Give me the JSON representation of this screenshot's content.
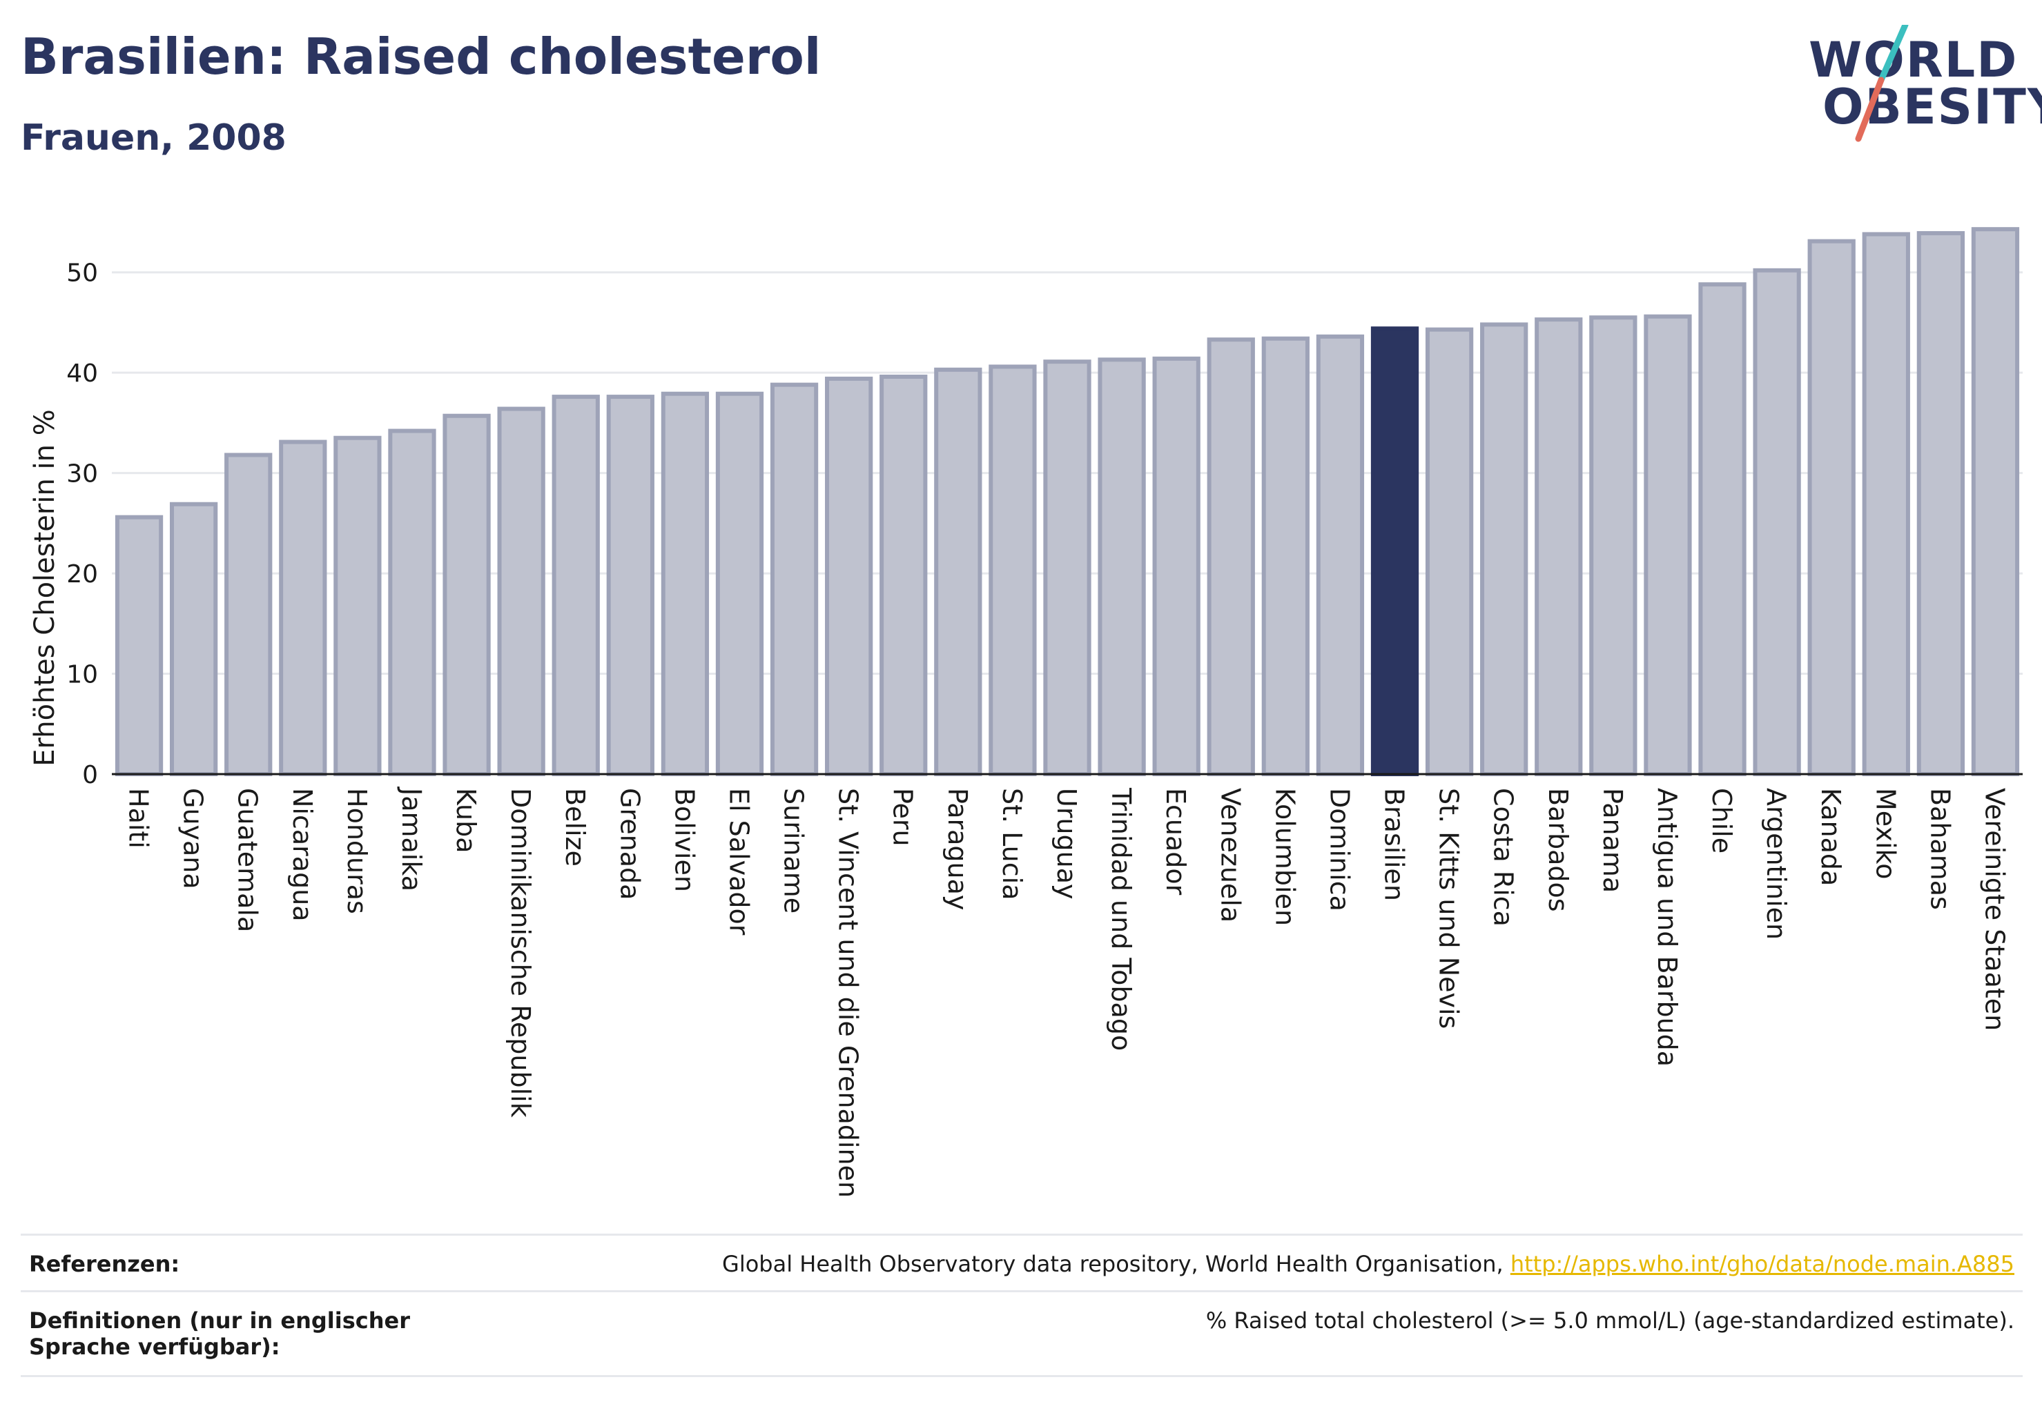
{
  "title": "Brasilien: Raised cholesterol",
  "subtitle": "Frauen, 2008",
  "logo": {
    "line1": "WORLD",
    "line2": "OBESITY"
  },
  "colors": {
    "bar": "#bfc2cf",
    "bar_stroke": "#9ea3b8",
    "highlight": "#2b3560",
    "accent_teal": "#3bbfbf",
    "accent_red": "#e26b5a",
    "grid": "#e6e8ec"
  },
  "chart_data": {
    "type": "bar",
    "ylabel": "Erhöhtes Cholesterin in %",
    "xlabel": "",
    "ylim": [
      0,
      55
    ],
    "yticks": [
      0,
      10,
      20,
      30,
      40,
      50
    ],
    "grid": true,
    "highlight": "Brasilien",
    "categories": [
      "Haiti",
      "Guyana",
      "Guatemala",
      "Nicaragua",
      "Honduras",
      "Jamaika",
      "Kuba",
      "Dominikanische Republik",
      "Belize",
      "Grenada",
      "Bolivien",
      "El Salvador",
      "Suriname",
      "St. Vincent und die Grenadinen",
      "Peru",
      "Paraguay",
      "St. Lucia",
      "Uruguay",
      "Trinidad und Tobago",
      "Ecuador",
      "Venezuela",
      "Kolumbien",
      "Dominica",
      "Brasilien",
      "St. Kitts und Nevis",
      "Costa Rica",
      "Barbados",
      "Panama",
      "Antigua und Barbuda",
      "Chile",
      "Argentinien",
      "Kanada",
      "Mexiko",
      "Bahamas",
      "Vereinigte Staaten"
    ],
    "values": [
      25.6,
      26.9,
      31.8,
      33.1,
      33.5,
      34.2,
      35.7,
      36.4,
      37.6,
      37.6,
      37.9,
      37.9,
      38.8,
      39.4,
      39.6,
      40.3,
      40.6,
      41.1,
      41.3,
      41.4,
      43.3,
      43.4,
      43.6,
      44.4,
      44.3,
      44.8,
      45.3,
      45.5,
      45.6,
      48.8,
      50.2,
      53.1,
      53.8,
      53.9,
      54.3
    ]
  },
  "footer": {
    "references_label": "Referenzen:",
    "references_text": "Global Health Observatory data repository, World Health Organisation,",
    "references_link": "http://apps.who.int/gho/data/node.main.A885",
    "definitions_label": "Definitionen (nur in englischer Sprache verfügbar):",
    "definitions_text": "% Raised total cholesterol (>= 5.0 mmol/L) (age-standardized estimate)."
  }
}
